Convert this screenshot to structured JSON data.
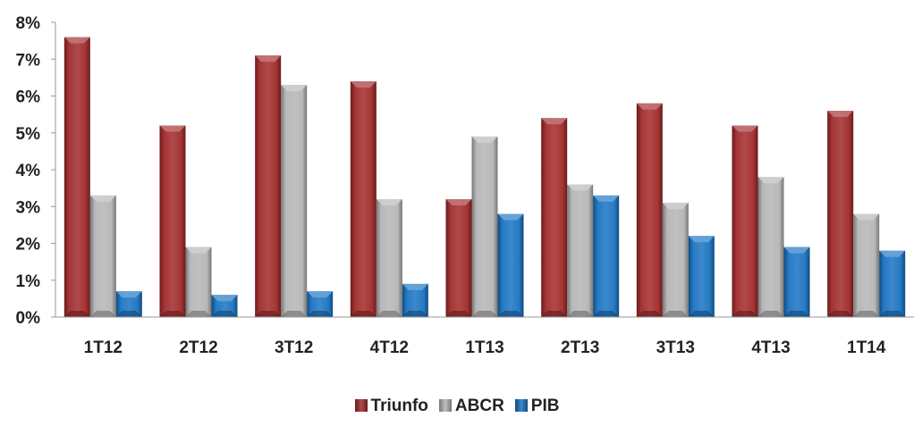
{
  "chart_data": {
    "type": "bar",
    "categories": [
      "1T12",
      "2T12",
      "3T12",
      "4T12",
      "1T13",
      "2T13",
      "3T13",
      "4T13",
      "1T14"
    ],
    "series": [
      {
        "name": "Triunfo",
        "values": [
          7.6,
          5.2,
          7.1,
          6.4,
          3.2,
          5.4,
          5.8,
          5.2,
          5.6
        ],
        "color": "#a12a2a"
      },
      {
        "name": "ABCR",
        "values": [
          3.3,
          1.9,
          6.3,
          3.2,
          4.9,
          3.6,
          3.1,
          3.8,
          2.8
        ],
        "color": "#b5b5b5"
      },
      {
        "name": "PIB",
        "values": [
          0.7,
          0.6,
          0.7,
          0.9,
          2.8,
          3.3,
          2.2,
          1.9,
          1.8
        ],
        "color": "#1a73c2"
      }
    ],
    "y_ticks": [
      "0%",
      "1%",
      "2%",
      "3%",
      "4%",
      "5%",
      "6%",
      "7%",
      "8%"
    ],
    "ylim": [
      0,
      8
    ],
    "legend_position": "bottom",
    "grid": false
  }
}
